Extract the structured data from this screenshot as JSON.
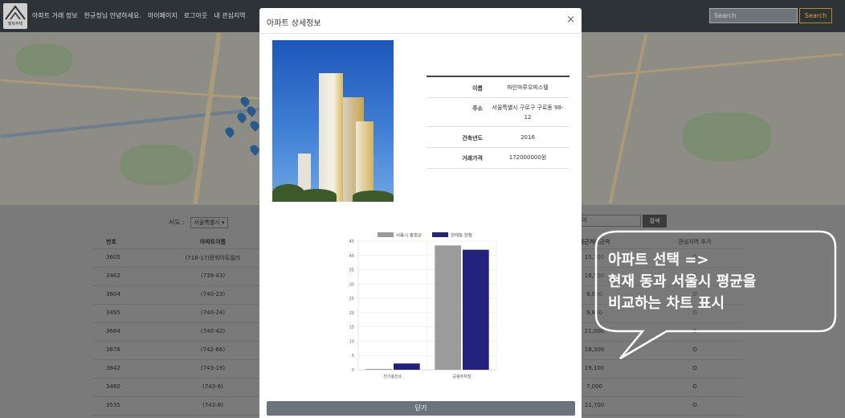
{
  "navbar": {
    "logo_text": "행복주택",
    "links": [
      "아파트 거래 정보",
      "한규정님 안녕하세요.",
      "마이페이지",
      "로그아웃",
      "내 관심지역"
    ],
    "search_placeholder": "Search",
    "search_button": "Search"
  },
  "filters": {
    "sido_label": "시도 :",
    "sido_value": "서울특별시",
    "search_value": "이",
    "search_button": "검색"
  },
  "table": {
    "headers": [
      "번호",
      "아파트이름",
      "최근거래금액",
      "관심지역 추가"
    ],
    "rows": [
      {
        "no": "3605",
        "name": "(718-17)문화아트빌라",
        "price": "15,300",
        "fav": "O"
      },
      {
        "no": "3462",
        "name": "(739-43)",
        "price": "16,500",
        "fav": "O"
      },
      {
        "no": "3604",
        "name": "(740-23)",
        "price": "9,000",
        "fav": "O"
      },
      {
        "no": "3495",
        "name": "(740-24)",
        "price": "9,800",
        "fav": "O"
      },
      {
        "no": "3664",
        "name": "(740-42)",
        "price": "21,000",
        "fav": "O"
      },
      {
        "no": "3678",
        "name": "(742-66)",
        "price": "18,300",
        "fav": "O"
      },
      {
        "no": "3642",
        "name": "(743-19)",
        "price": "19,100",
        "fav": "O"
      },
      {
        "no": "3460",
        "name": "(743-6)",
        "price": "7,000",
        "fav": "O"
      },
      {
        "no": "3535",
        "name": "(743-8)",
        "price": "11,700",
        "fav": "O"
      }
    ]
  },
  "modal": {
    "title": "아파트 상세정보",
    "close_icon": "×",
    "info": [
      {
        "key": "이름",
        "value": "파인마루오피스텔"
      },
      {
        "key": "주소",
        "value": "서울특별시 구로구 구로동 98-12"
      },
      {
        "key": "건축년도",
        "value": "2016"
      },
      {
        "key": "거래가격",
        "value": "172000000원"
      }
    ],
    "close_button": "닫기"
  },
  "chart_data": {
    "type": "bar",
    "categories": [
      "전기충전소",
      "공용주차장"
    ],
    "series": [
      {
        "name": "서울시 총평균",
        "values": [
          0.3,
          43.5
        ],
        "color": "#9b9b9b"
      },
      {
        "name": "현재동 현황",
        "values": [
          2.2,
          42
        ],
        "color": "#23237e"
      }
    ],
    "ylim": [
      0,
      45
    ],
    "yticks": [
      0,
      5,
      10,
      15,
      20,
      25,
      30,
      35,
      40,
      45
    ],
    "grid": true,
    "legend": "top"
  },
  "callout": {
    "lines": [
      "아파트 선택 =>",
      "현재 동과 서울시 평균을",
      "비교하는 차트 표시"
    ]
  },
  "colors": {
    "navbar": "#2e3338",
    "accent": "#e0a22f",
    "modal_button": "#6b747c"
  }
}
